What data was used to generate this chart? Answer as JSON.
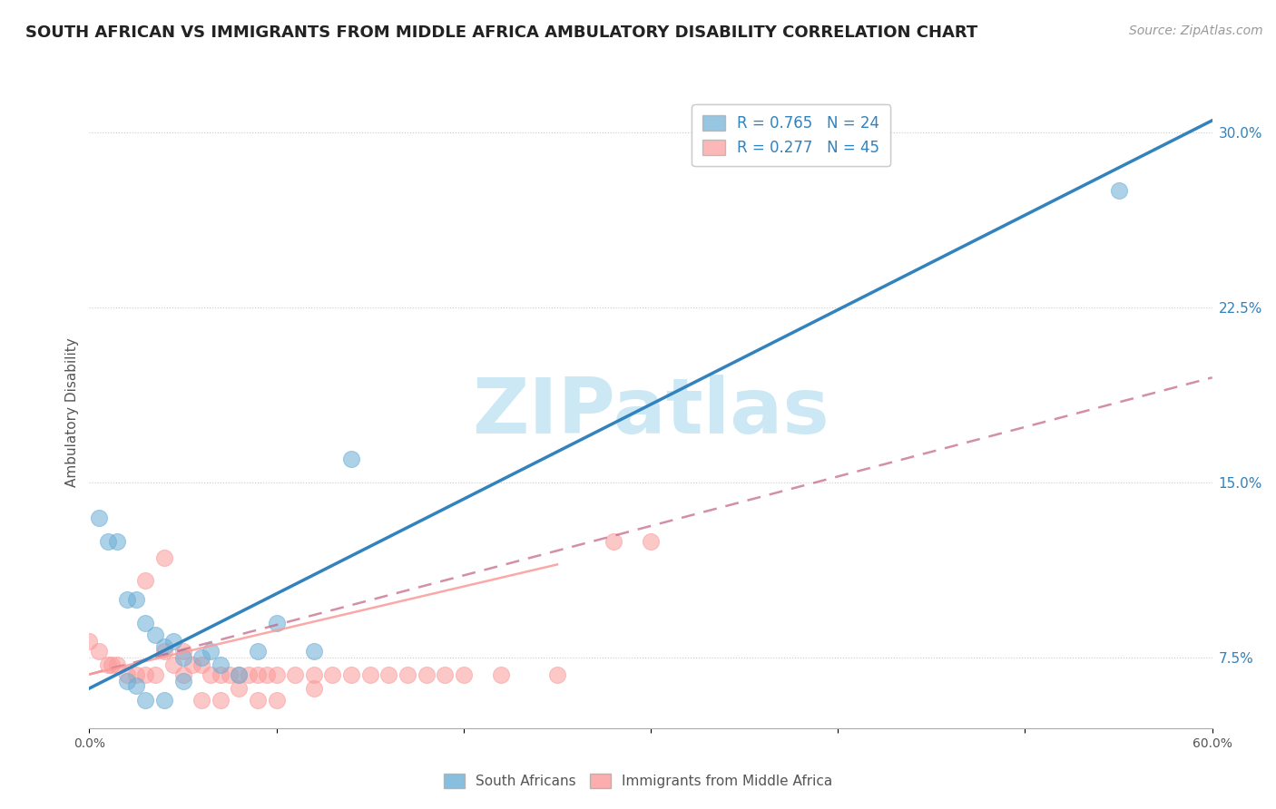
{
  "title": "SOUTH AFRICAN VS IMMIGRANTS FROM MIDDLE AFRICA AMBULATORY DISABILITY CORRELATION CHART",
  "source": "Source: ZipAtlas.com",
  "ylabel": "Ambulatory Disability",
  "xlabel": "",
  "xlim": [
    0.0,
    0.6
  ],
  "ylim": [
    0.045,
    0.315
  ],
  "x_ticks": [
    0.0,
    0.1,
    0.2,
    0.3,
    0.4,
    0.5,
    0.6
  ],
  "x_tick_labels": [
    "0.0%",
    "",
    "",
    "",
    "",
    "",
    "60.0%"
  ],
  "y_ticks_right": [
    0.075,
    0.15,
    0.225,
    0.3
  ],
  "y_tick_labels_right": [
    "7.5%",
    "15.0%",
    "22.5%",
    "30.0%"
  ],
  "legend1_label": "R = 0.765   N = 24",
  "legend2_label": "R = 0.277   N = 45",
  "legend1_color": "#6baed6",
  "legend2_color": "#fb9a99",
  "watermark": "ZIPatlas",
  "south_african_x": [
    0.005,
    0.01,
    0.015,
    0.02,
    0.025,
    0.03,
    0.035,
    0.04,
    0.045,
    0.05,
    0.06,
    0.065,
    0.07,
    0.08,
    0.09,
    0.1,
    0.12,
    0.14,
    0.55,
    0.05,
    0.02,
    0.025,
    0.03,
    0.04
  ],
  "south_african_y": [
    0.135,
    0.125,
    0.125,
    0.1,
    0.1,
    0.09,
    0.085,
    0.08,
    0.082,
    0.075,
    0.075,
    0.078,
    0.072,
    0.068,
    0.078,
    0.09,
    0.078,
    0.16,
    0.275,
    0.065,
    0.065,
    0.063,
    0.057,
    0.057
  ],
  "immigrants_x": [
    0.0,
    0.005,
    0.01,
    0.012,
    0.015,
    0.02,
    0.025,
    0.03,
    0.035,
    0.04,
    0.045,
    0.05,
    0.055,
    0.06,
    0.065,
    0.07,
    0.075,
    0.08,
    0.085,
    0.09,
    0.095,
    0.1,
    0.11,
    0.12,
    0.13,
    0.14,
    0.15,
    0.16,
    0.17,
    0.18,
    0.19,
    0.2,
    0.22,
    0.25,
    0.28,
    0.3,
    0.03,
    0.04,
    0.05,
    0.06,
    0.07,
    0.08,
    0.09,
    0.1,
    0.12
  ],
  "immigrants_y": [
    0.082,
    0.078,
    0.072,
    0.072,
    0.072,
    0.068,
    0.068,
    0.068,
    0.068,
    0.078,
    0.072,
    0.068,
    0.072,
    0.072,
    0.068,
    0.068,
    0.068,
    0.068,
    0.068,
    0.068,
    0.068,
    0.068,
    0.068,
    0.068,
    0.068,
    0.068,
    0.068,
    0.068,
    0.068,
    0.068,
    0.068,
    0.068,
    0.068,
    0.068,
    0.125,
    0.125,
    0.108,
    0.118,
    0.078,
    0.057,
    0.057,
    0.062,
    0.057,
    0.057,
    0.062
  ],
  "sa_line_x": [
    0.0,
    0.6
  ],
  "sa_line_y": [
    0.062,
    0.305
  ],
  "imm_line_x": [
    0.0,
    0.6
  ],
  "imm_line_y": [
    0.068,
    0.195
  ],
  "title_fontsize": 13,
  "source_fontsize": 10,
  "label_fontsize": 11,
  "tick_fontsize": 10,
  "legend_fontsize": 12,
  "scatter_size": 120,
  "sa_color": "#6baed6",
  "imm_color": "#fb9a99",
  "sa_line_color": "#3182bd",
  "imm_line_color": "#c06080",
  "grid_color": "#cccccc",
  "background_color": "#ffffff",
  "watermark_color": "#cde8f5"
}
